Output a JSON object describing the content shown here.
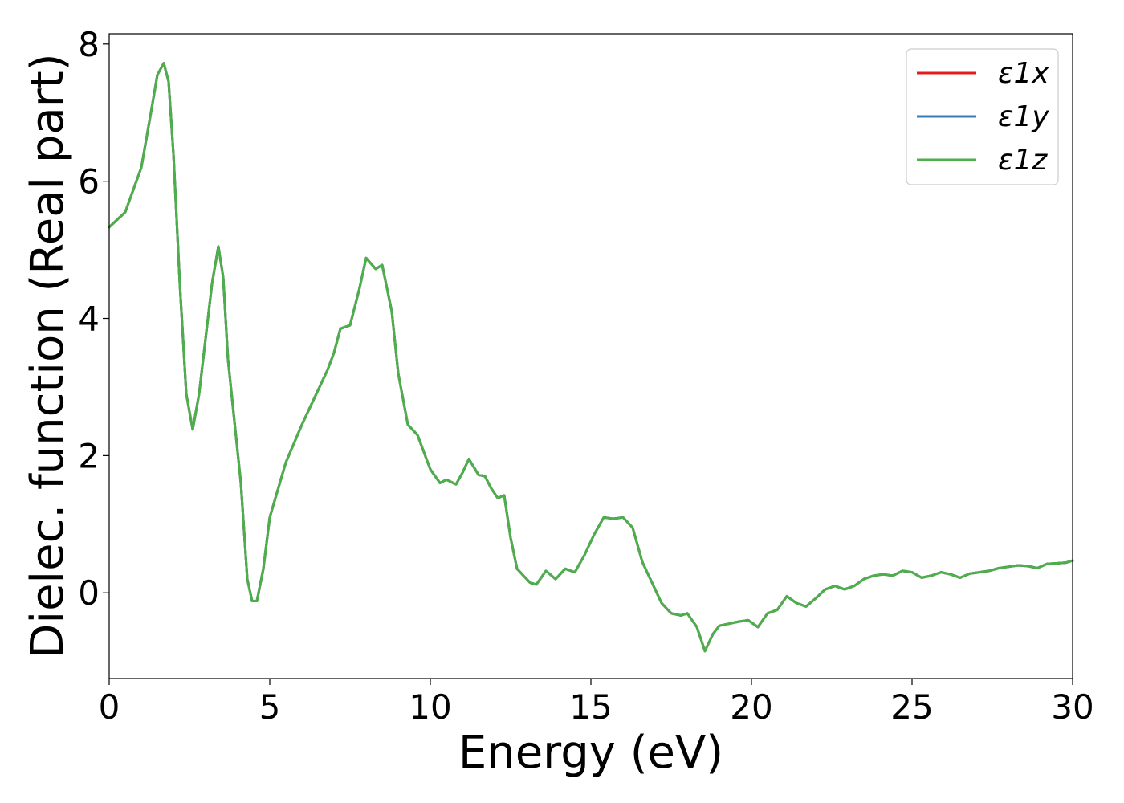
{
  "chart_data": {
    "type": "line",
    "title": "",
    "xlabel": "Energy (eV)",
    "ylabel": "Dielec. function (Real part)",
    "xlim": [
      0,
      30
    ],
    "ylim": [
      -1.25,
      8.15
    ],
    "xticks": [
      0,
      5,
      10,
      15,
      20,
      25,
      30
    ],
    "yticks": [
      0,
      2,
      4,
      6,
      8
    ],
    "grid": false,
    "legend_position": "top-right",
    "series": [
      {
        "name": "ε1x",
        "color": "#e41a1c",
        "x": [
          0,
          0.5,
          1.0,
          1.3,
          1.5,
          1.7,
          1.85,
          2.0,
          2.2,
          2.4,
          2.6,
          2.8,
          3.0,
          3.2,
          3.4,
          3.55,
          3.7,
          3.9,
          4.1,
          4.3,
          4.45,
          4.6,
          4.8,
          5.0,
          5.5,
          6.0,
          6.5,
          6.8,
          7.0,
          7.2,
          7.5,
          7.8,
          8.0,
          8.3,
          8.5,
          8.8,
          9.0,
          9.3,
          9.6,
          9.8,
          10.0,
          10.3,
          10.5,
          10.8,
          11.0,
          11.2,
          11.5,
          11.7,
          11.9,
          12.1,
          12.3,
          12.5,
          12.7,
          12.9,
          13.1,
          13.3,
          13.6,
          13.9,
          14.2,
          14.5,
          14.8,
          15.1,
          15.4,
          15.7,
          16.0,
          16.3,
          16.6,
          16.9,
          17.2,
          17.5,
          17.8,
          18.0,
          18.3,
          18.55,
          18.8,
          19.0,
          19.3,
          19.6,
          19.9,
          20.2,
          20.5,
          20.8,
          21.1,
          21.4,
          21.7,
          22.0,
          22.3,
          22.6,
          22.9,
          23.2,
          23.5,
          23.8,
          24.1,
          24.4,
          24.7,
          25.0,
          25.3,
          25.6,
          25.9,
          26.2,
          26.5,
          26.8,
          27.1,
          27.4,
          27.7,
          28.0,
          28.3,
          28.6,
          28.9,
          29.2,
          29.5,
          29.8,
          30.0
        ],
        "y": [
          5.33,
          5.55,
          6.2,
          7.0,
          7.55,
          7.72,
          7.45,
          6.4,
          4.5,
          2.9,
          2.38,
          2.9,
          3.7,
          4.5,
          5.05,
          4.6,
          3.4,
          2.5,
          1.6,
          0.2,
          -0.12,
          -0.12,
          0.35,
          1.1,
          1.9,
          2.45,
          2.95,
          3.25,
          3.5,
          3.85,
          3.9,
          4.45,
          4.88,
          4.72,
          4.78,
          4.1,
          3.2,
          2.45,
          2.3,
          2.05,
          1.8,
          1.6,
          1.65,
          1.58,
          1.75,
          1.95,
          1.72,
          1.7,
          1.52,
          1.38,
          1.42,
          0.8,
          0.35,
          0.25,
          0.15,
          0.12,
          0.32,
          0.2,
          0.35,
          0.3,
          0.55,
          0.85,
          1.1,
          1.08,
          1.1,
          0.95,
          0.45,
          0.15,
          -0.15,
          -0.3,
          -0.33,
          -0.3,
          -0.5,
          -0.85,
          -0.6,
          -0.48,
          -0.45,
          -0.42,
          -0.4,
          -0.5,
          -0.3,
          -0.25,
          -0.05,
          -0.15,
          -0.2,
          -0.08,
          0.05,
          0.1,
          0.05,
          0.1,
          0.2,
          0.25,
          0.27,
          0.25,
          0.32,
          0.3,
          0.22,
          0.25,
          0.3,
          0.27,
          0.22,
          0.28,
          0.3,
          0.32,
          0.36,
          0.38,
          0.4,
          0.39,
          0.36,
          0.42,
          0.43,
          0.44,
          0.47
        ]
      },
      {
        "name": "ε1y",
        "color": "#377eb8",
        "same_as": "ε1x"
      },
      {
        "name": "ε1z",
        "color": "#4daf4a",
        "same_as": "ε1x"
      }
    ]
  }
}
